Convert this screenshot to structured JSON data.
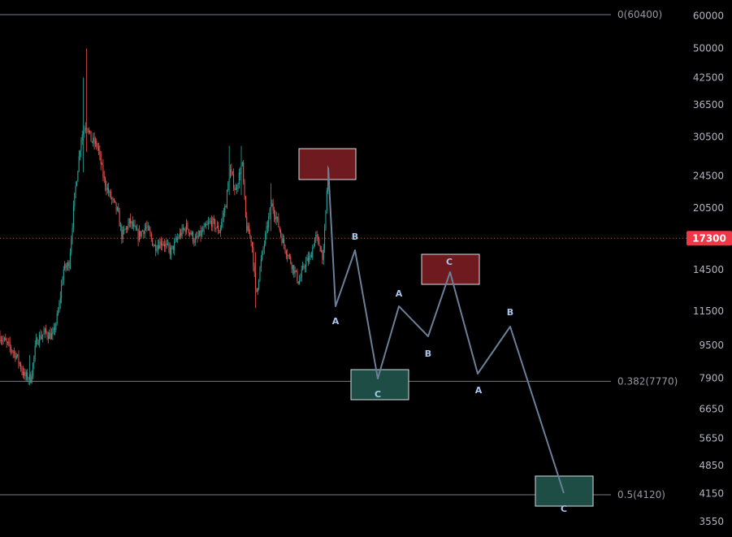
{
  "chart_data": {
    "type": "candlestick",
    "y_scale": "log",
    "ylim": [
      3400,
      64000
    ],
    "y_ticks": [
      60000,
      50000,
      42500,
      36500,
      30500,
      24500,
      20500,
      14500,
      11500,
      9500,
      7900,
      6650,
      5650,
      4850,
      4150,
      3550
    ],
    "current_price": {
      "value": 17300,
      "label": "17300",
      "color": "#f23645"
    },
    "fib_levels": [
      {
        "value": 60400,
        "label": "0(60400)"
      },
      {
        "value": 7770,
        "label": "0.382(7770)"
      },
      {
        "value": 4120,
        "label": "0.5(4120)"
      }
    ],
    "price_anchors": [
      {
        "t": 0,
        "p": 10000
      },
      {
        "t": 20,
        "p": 9000
      },
      {
        "t": 30,
        "p": 8000
      },
      {
        "t": 38,
        "p": 7900
      },
      {
        "t": 45,
        "p": 9800
      },
      {
        "t": 55,
        "p": 10200
      },
      {
        "t": 65,
        "p": 10000
      },
      {
        "t": 72,
        "p": 11500
      },
      {
        "t": 78,
        "p": 14500
      },
      {
        "t": 85,
        "p": 15000
      },
      {
        "t": 92,
        "p": 22000
      },
      {
        "t": 100,
        "p": 30500
      },
      {
        "t": 106,
        "p": 33000
      },
      {
        "t": 112,
        "p": 30000
      },
      {
        "t": 120,
        "p": 29000
      },
      {
        "t": 128,
        "p": 24000
      },
      {
        "t": 135,
        "p": 22000
      },
      {
        "t": 145,
        "p": 20000
      },
      {
        "t": 150,
        "p": 17500
      },
      {
        "t": 160,
        "p": 19000
      },
      {
        "t": 170,
        "p": 17500
      },
      {
        "t": 180,
        "p": 18500
      },
      {
        "t": 190,
        "p": 16500
      },
      {
        "t": 200,
        "p": 17000
      },
      {
        "t": 210,
        "p": 16000
      },
      {
        "t": 220,
        "p": 17500
      },
      {
        "t": 230,
        "p": 18500
      },
      {
        "t": 240,
        "p": 17000
      },
      {
        "t": 250,
        "p": 18000
      },
      {
        "t": 260,
        "p": 19000
      },
      {
        "t": 270,
        "p": 18000
      },
      {
        "t": 278,
        "p": 21000
      },
      {
        "t": 283,
        "p": 25500
      },
      {
        "t": 290,
        "p": 22500
      },
      {
        "t": 298,
        "p": 26500
      },
      {
        "t": 303,
        "p": 18500
      },
      {
        "t": 310,
        "p": 17000
      },
      {
        "t": 315,
        "p": 12500
      },
      {
        "t": 322,
        "p": 15500
      },
      {
        "t": 328,
        "p": 18000
      },
      {
        "t": 334,
        "p": 21000
      },
      {
        "t": 340,
        "p": 19500
      },
      {
        "t": 348,
        "p": 17000
      },
      {
        "t": 356,
        "p": 15500
      },
      {
        "t": 362,
        "p": 14500
      },
      {
        "t": 368,
        "p": 13500
      },
      {
        "t": 375,
        "p": 15000
      },
      {
        "t": 382,
        "p": 15500
      },
      {
        "t": 388,
        "p": 17500
      },
      {
        "t": 394,
        "p": 16500
      },
      {
        "t": 398,
        "p": 15500
      },
      {
        "t": 402,
        "p": 22000
      },
      {
        "t": 404,
        "p": 26000
      }
    ],
    "price_spikes": [
      {
        "t": 108,
        "high": 50000,
        "low": 28000
      },
      {
        "t": 104,
        "high": 42500,
        "low": 25000
      },
      {
        "t": 315,
        "low": 11700,
        "high": 16000
      },
      {
        "t": 334,
        "high": 23500,
        "low": 18000
      },
      {
        "t": 298,
        "high": 29000,
        "low": 22000
      },
      {
        "t": 283,
        "high": 29000,
        "low": 22000
      },
      {
        "t": 37,
        "low": 7600,
        "high": 9000
      }
    ],
    "projection": {
      "points": [
        {
          "x": 404,
          "y": 206
        },
        {
          "x": 413,
          "y": 377
        },
        {
          "x": 437,
          "y": 308
        },
        {
          "x": 465,
          "y": 466
        },
        {
          "x": 491,
          "y": 377
        },
        {
          "x": 527,
          "y": 414
        },
        {
          "x": 554,
          "y": 335
        },
        {
          "x": 588,
          "y": 460
        },
        {
          "x": 628,
          "y": 402
        },
        {
          "x": 694,
          "y": 607
        }
      ],
      "labels": [
        {
          "text": "A",
          "x": 413,
          "y": 399
        },
        {
          "text": "B",
          "x": 437,
          "y": 295
        },
        {
          "text": "C",
          "x": 465,
          "y": 489
        },
        {
          "text": "A",
          "x": 491,
          "y": 365
        },
        {
          "text": "B",
          "x": 527,
          "y": 439
        },
        {
          "text": "C",
          "x": 553,
          "y": 326
        },
        {
          "text": "A",
          "x": 589,
          "y": 484
        },
        {
          "text": "B",
          "x": 628,
          "y": 388
        },
        {
          "text": "C",
          "x": 694,
          "y": 630
        }
      ]
    },
    "zones": [
      {
        "type": "resistance",
        "color": "#6e1a1f",
        "x1": 368,
        "x2": 438,
        "y1": 183,
        "y2": 221
      },
      {
        "type": "resistance",
        "color": "#6e1a1f",
        "x1": 519,
        "x2": 590,
        "y1": 313,
        "y2": 350
      },
      {
        "type": "support",
        "color": "#1d4d44",
        "x1": 432,
        "x2": 503,
        "y1": 455,
        "y2": 492
      },
      {
        "type": "support",
        "color": "#1d4d44",
        "x1": 659,
        "x2": 730,
        "y1": 586,
        "y2": 623
      }
    ],
    "colors": {
      "up": "#26a69a",
      "down": "#ef5350",
      "wave": "#6b7f99",
      "fib": "#787b86"
    }
  }
}
